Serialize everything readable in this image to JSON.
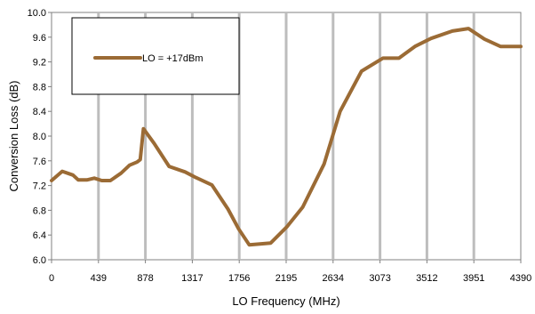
{
  "chart_data": {
    "type": "line",
    "xlabel": "LO Frequency (MHz)",
    "ylabel": "Conversion Loss (dB)",
    "xlim": [
      0,
      4390
    ],
    "ylim": [
      6.0,
      10.0
    ],
    "x_ticks": [
      0,
      439,
      878,
      1317,
      1756,
      2195,
      2634,
      3073,
      3512,
      3951,
      4390
    ],
    "y_ticks": [
      "6.0",
      "6.4",
      "6.8",
      "7.2",
      "7.6",
      "8.0",
      "8.4",
      "8.8",
      "9.2",
      "9.6",
      "10.0"
    ],
    "grid": "vertical",
    "legend_position": "top-left",
    "series": [
      {
        "name": "LO = +17dBm",
        "color": "#9B6B35",
        "x": [
          0,
          100,
          200,
          250,
          330,
          400,
          470,
          550,
          650,
          730,
          800,
          830,
          860,
          960,
          1100,
          1250,
          1350,
          1500,
          1650,
          1750,
          1850,
          2050,
          2200,
          2350,
          2550,
          2700,
          2900,
          3100,
          3250,
          3400,
          3550,
          3750,
          3900,
          4050,
          4200,
          4390
        ],
        "y": [
          7.28,
          7.43,
          7.37,
          7.29,
          7.29,
          7.32,
          7.28,
          7.28,
          7.4,
          7.53,
          7.58,
          7.62,
          8.12,
          7.88,
          7.51,
          7.42,
          7.33,
          7.21,
          6.82,
          6.5,
          6.24,
          6.27,
          6.53,
          6.85,
          7.55,
          8.4,
          9.05,
          9.26,
          9.26,
          9.45,
          9.58,
          9.7,
          9.74,
          9.57,
          9.45,
          9.45
        ]
      }
    ]
  }
}
